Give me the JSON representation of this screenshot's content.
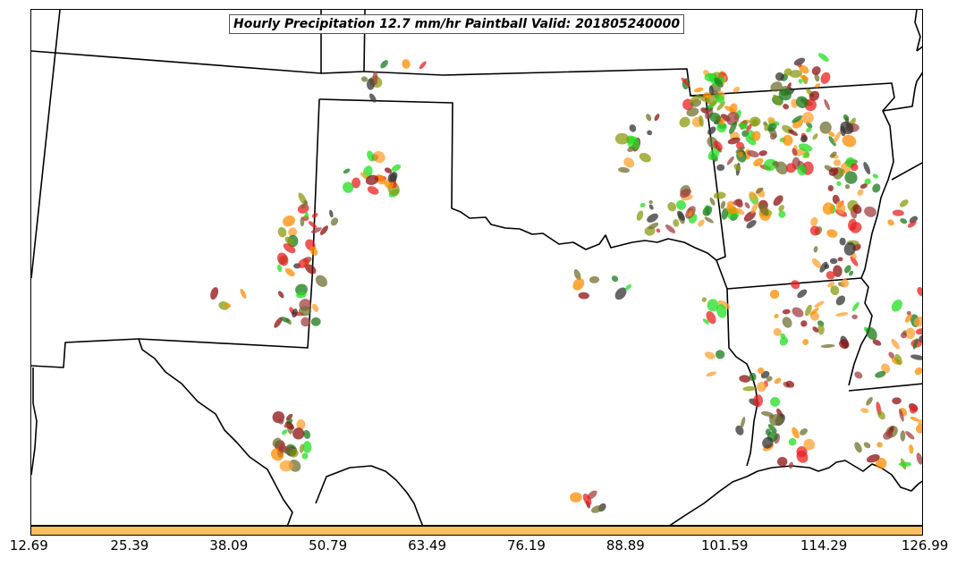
{
  "map": {
    "title": "Hourly Precipitation 12.7 mm/hr Paintball Valid: 201805240000",
    "colorbar": {
      "color": "#fcc060",
      "tick_labels": [
        "12.69",
        "25.39",
        "38.09",
        "50.79",
        "63.49",
        "76.19",
        "88.89",
        "101.59",
        "114.29",
        "126.99"
      ]
    },
    "member_colors": [
      "#e82020",
      "#ff8c00",
      "#ffa030",
      "#22dd22",
      "#1a7a1a",
      "#8a9a10",
      "#8b1010",
      "#a04040",
      "#333333",
      "#707030"
    ]
  }
}
